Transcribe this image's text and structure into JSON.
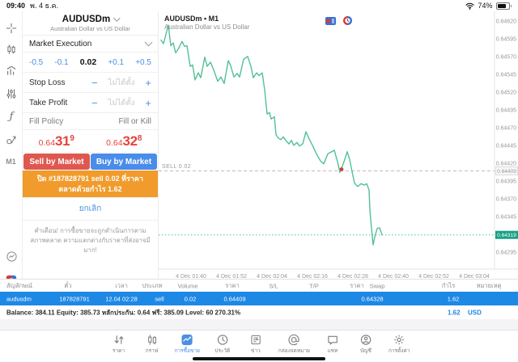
{
  "status_bar": {
    "time": "09:40",
    "date": "พ. 4 ธ.ค.",
    "battery_percent": "74%"
  },
  "icon_rail": {
    "timeframe_label": "M1"
  },
  "order_panel": {
    "symbol": "AUDUSDm",
    "symbol_description": "Australian Dollar vs US Dollar",
    "execution_mode": "Market Execution",
    "volume_steppers": {
      "minus_large": "-0.5",
      "minus_small": "-0.1",
      "value": "0.02",
      "plus_small": "+0.1",
      "plus_large": "+0.5"
    },
    "stop_loss": {
      "label": "Stop Loss",
      "minus": "−",
      "value_placeholder": "ไม่ได้ตั้ง",
      "plus": "+"
    },
    "take_profit": {
      "label": "Take Profit",
      "minus": "−",
      "value_placeholder": "ไม่ได้ตั้ง",
      "plus": "+"
    },
    "fill_policy": {
      "label": "Fill Policy",
      "value": "Fill or Kill"
    },
    "sell_price": {
      "prefix": "0.64",
      "big": "31",
      "sup": "9"
    },
    "buy_price": {
      "prefix": "0.64",
      "big": "32",
      "sup": "8"
    },
    "sell_button_label": "Sell by Market",
    "buy_button_label": "Buy by Market",
    "notification_text": "ปิด #187828791 sell 0.02 ที่ราคาตลาดด้วยกำไร 1.62",
    "cancel_button_label": "ยกเลิก",
    "warning_text": "คำเตือน! การซื้อขายจะถูกดำเนินการตามสภาพตลาด ความแตกต่างกับราคาที่ส่งอาจมีมาก!"
  },
  "chart_data": {
    "type": "line",
    "title": "AUDUSDm • M1",
    "subtitle": "Australian Dollar vs US Dollar",
    "line_color": "#52c096",
    "grid": false,
    "x_tick_labels": [
      "4 Dec 01:40",
      "4 Dec 01:52",
      "4 Dec 02:04",
      "4 Dec 02:16",
      "4 Dec 02:28",
      "4 Dec 02:40",
      "4 Dec 02:52",
      "4 Dec 03:04"
    ],
    "y_tick_values": [
      0.6462,
      0.64595,
      0.6457,
      0.64545,
      0.6452,
      0.64495,
      0.6447,
      0.64445,
      0.6442,
      0.64395,
      0.6437,
      0.64345,
      0.64295
    ],
    "ylim": [
      0.64271,
      0.64633
    ],
    "position_line": {
      "label": "SELL 0.02",
      "price": 0.64409,
      "color": "#bdbdbd"
    },
    "current_price": {
      "value": 0.64319,
      "color": "#17a086"
    },
    "entry_marker": {
      "x": 422,
      "price": 0.64409,
      "color": "#e03c31"
    },
    "points": [
      [
        199,
        0.64593
      ],
      [
        202,
        0.64588
      ],
      [
        208,
        0.64614
      ],
      [
        211,
        0.64585
      ],
      [
        214,
        0.64589
      ],
      [
        217,
        0.64575
      ],
      [
        220,
        0.6458
      ],
      [
        225,
        0.64591
      ],
      [
        228,
        0.64584
      ],
      [
        231,
        0.64585
      ],
      [
        235,
        0.64556
      ],
      [
        238,
        0.64558
      ],
      [
        241,
        0.64537
      ],
      [
        245,
        0.64547
      ],
      [
        248,
        0.6454
      ],
      [
        253,
        0.64569
      ],
      [
        256,
        0.64556
      ],
      [
        260,
        0.64562
      ],
      [
        264,
        0.64551
      ],
      [
        269,
        0.64535
      ],
      [
        273,
        0.64541
      ],
      [
        277,
        0.64532
      ],
      [
        282,
        0.64564
      ],
      [
        285,
        0.64557
      ],
      [
        289,
        0.64541
      ],
      [
        293,
        0.64546
      ],
      [
        296,
        0.64541
      ],
      [
        301,
        0.64566
      ],
      [
        306,
        0.6457
      ],
      [
        310,
        0.64556
      ],
      [
        313,
        0.6454
      ],
      [
        317,
        0.64547
      ],
      [
        320,
        0.64543
      ],
      [
        324,
        0.64547
      ],
      [
        327,
        0.64523
      ],
      [
        330,
        0.64489
      ],
      [
        333,
        0.64491
      ],
      [
        335,
        0.64482
      ],
      [
        339,
        0.64485
      ],
      [
        341,
        0.6446
      ],
      [
        344,
        0.64455
      ],
      [
        347,
        0.64453
      ],
      [
        350,
        0.64457
      ],
      [
        353,
        0.64452
      ],
      [
        357,
        0.64447
      ],
      [
        360,
        0.64452
      ],
      [
        363,
        0.64445
      ],
      [
        367,
        0.64449
      ],
      [
        370,
        0.64444
      ],
      [
        374,
        0.64447
      ],
      [
        378,
        0.64464
      ],
      [
        382,
        0.64454
      ],
      [
        386,
        0.64445
      ],
      [
        391,
        0.64433
      ],
      [
        396,
        0.64423
      ],
      [
        400,
        0.64419
      ],
      [
        405,
        0.64433
      ],
      [
        413,
        0.64438
      ],
      [
        417,
        0.64422
      ],
      [
        420,
        0.64407
      ],
      [
        425,
        0.64422
      ],
      [
        429,
        0.64436
      ],
      [
        432,
        0.64425
      ],
      [
        435,
        0.64408
      ],
      [
        438,
        0.64392
      ],
      [
        442,
        0.64387
      ],
      [
        446,
        0.64391
      ],
      [
        450,
        0.64389
      ],
      [
        453,
        0.64391
      ],
      [
        456,
        0.64382
      ],
      [
        457,
        0.64354
      ],
      [
        459,
        0.64328
      ],
      [
        461,
        0.64305
      ],
      [
        463,
        0.64316
      ],
      [
        466,
        0.64328
      ],
      [
        469,
        0.64329
      ],
      [
        472,
        0.64319
      ]
    ]
  },
  "positions_table": {
    "headers": [
      "สัญลักษณ์",
      "ตั๋ว",
      "เวลา",
      "ประเภท",
      "Volume",
      "ราคา",
      "S/L",
      "T/P",
      "ราคา",
      "Swap",
      "กำไร",
      "หมายเหตุ"
    ],
    "row_values": [
      "audusdm",
      "187828791",
      "12.04 02:28",
      "sell",
      "0.02",
      "0.64409",
      "",
      "",
      "0.64328",
      "",
      "1.62",
      ""
    ],
    "summary_text": "Balance: 384.11 Equity: 385.73 หลักประกัน: 0.64 ฟรี: 385.09 Level: 60 270.31%",
    "summary_profit": "1.62",
    "summary_currency": "USD"
  },
  "nav": {
    "items": [
      "ราคา",
      "กราฟ",
      "การซื้อขาย",
      "ประวัติ",
      "ข่าว",
      "กล่องจดหมาย",
      "แชท",
      "บัญชี",
      "การตั้งค่า"
    ],
    "active_index": 2
  }
}
